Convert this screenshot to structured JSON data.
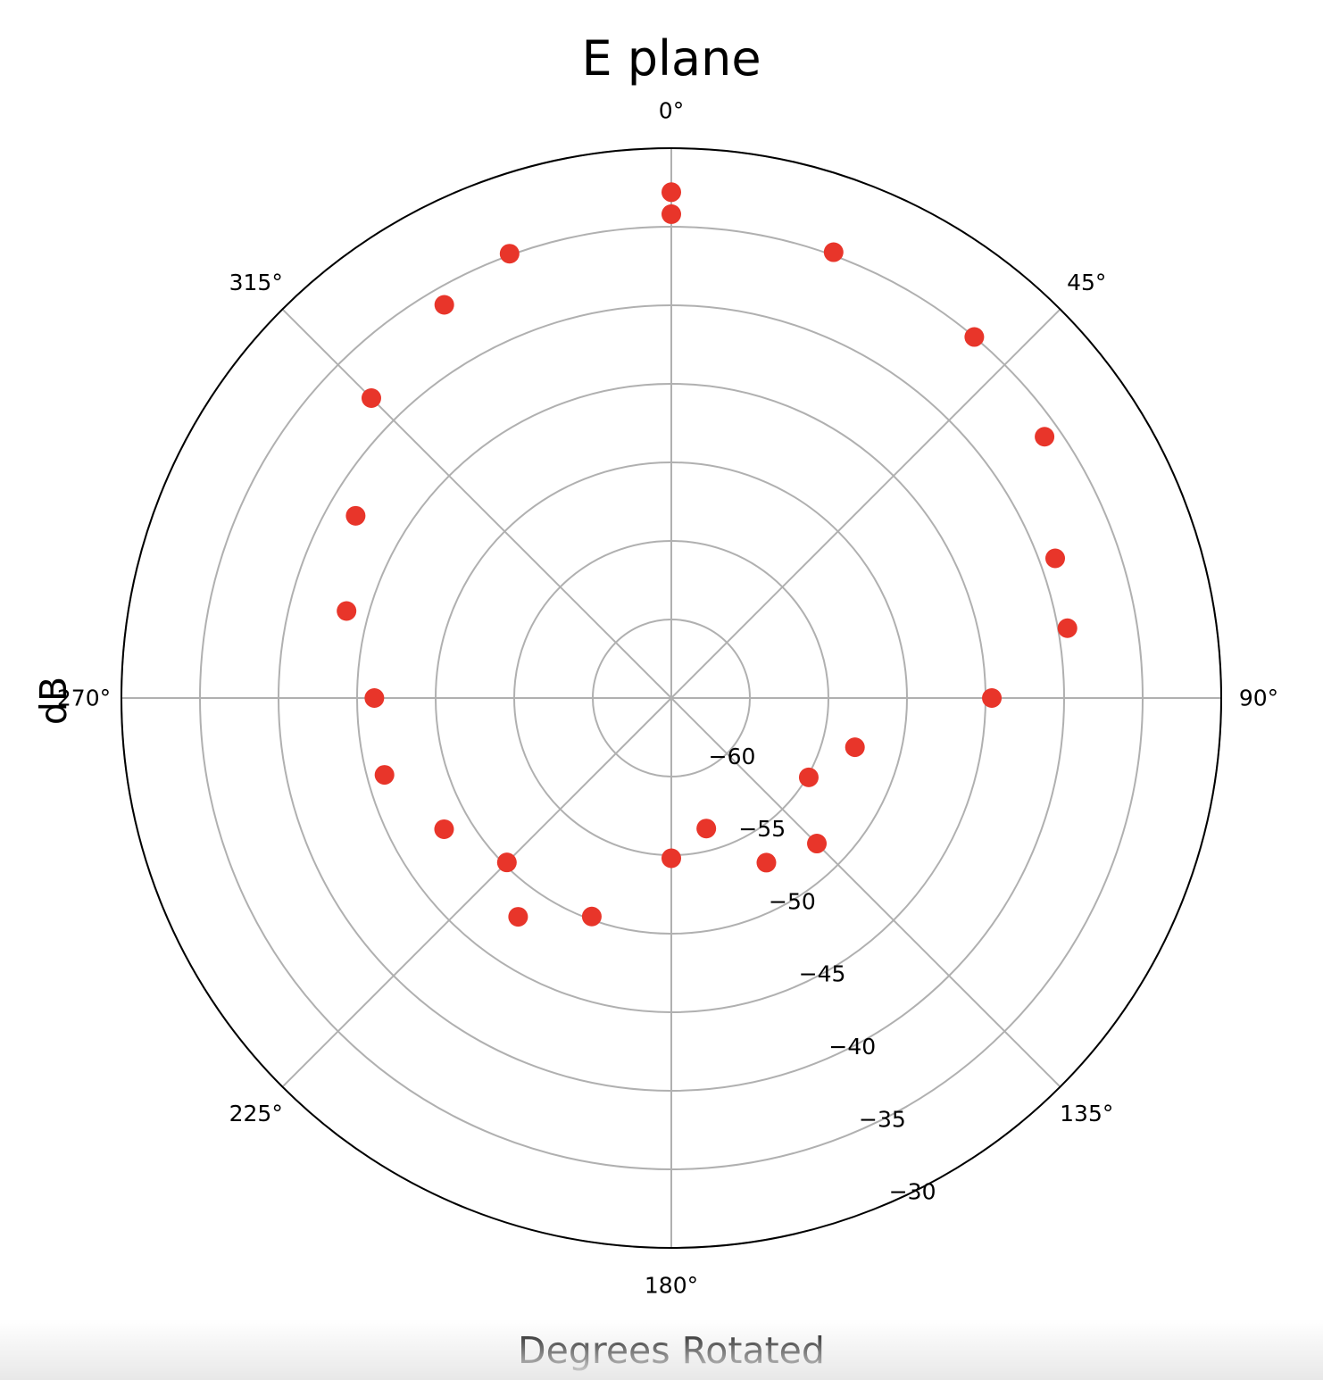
{
  "chart_data": {
    "type": "scatter",
    "projection": "polar",
    "title": "E plane",
    "xlabel": "Degrees Rotated",
    "ylabel": "dB",
    "theta_zero_location": "top",
    "theta_direction": "clockwise",
    "rlim": [
      -65,
      -30
    ],
    "r_ticks": [
      -60,
      -55,
      -50,
      -45,
      -40,
      -35,
      -30
    ],
    "r_tick_labels": [
      "−60",
      "−55",
      "−50",
      "−45",
      "−40",
      "−35",
      "−30"
    ],
    "r_label_angle_deg": 157.5,
    "theta_ticks_deg": [
      0,
      45,
      90,
      135,
      180,
      225,
      270,
      315
    ],
    "theta_tick_labels": [
      "0°",
      "45°",
      "90°",
      "135°",
      "180°",
      "225°",
      "270°",
      "315°"
    ],
    "grid": true,
    "marker_color": "#e8352a",
    "series": [
      {
        "points": [
          {
            "theta": 0,
            "r": -32.8
          },
          {
            "theta": 0,
            "r": -34.2
          },
          {
            "theta": 20,
            "r": -34.8
          },
          {
            "theta": 40,
            "r": -35.0
          },
          {
            "theta": 55,
            "r": -36.0
          },
          {
            "theta": 70,
            "r": -39.0
          },
          {
            "theta": 80,
            "r": -39.4
          },
          {
            "theta": 90,
            "r": -44.6
          },
          {
            "theta": 105,
            "r": -52.9
          },
          {
            "theta": 120,
            "r": -54.9
          },
          {
            "theta": 135,
            "r": -51.9
          },
          {
            "theta": 150,
            "r": -52.9
          },
          {
            "theta": 165,
            "r": -56.4
          },
          {
            "theta": 180,
            "r": -54.8
          },
          {
            "theta": 200,
            "r": -50.2
          },
          {
            "theta": 215,
            "r": -48.0
          },
          {
            "theta": 225,
            "r": -50.2
          },
          {
            "theta": 240,
            "r": -48.3
          },
          {
            "theta": 255,
            "r": -46.1
          },
          {
            "theta": 270,
            "r": -46.1
          },
          {
            "theta": 285,
            "r": -43.6
          },
          {
            "theta": 300,
            "r": -41.8
          },
          {
            "theta": 315,
            "r": -38.0
          },
          {
            "theta": 330,
            "r": -36.1
          },
          {
            "theta": 340,
            "r": -34.9
          }
        ]
      }
    ]
  }
}
